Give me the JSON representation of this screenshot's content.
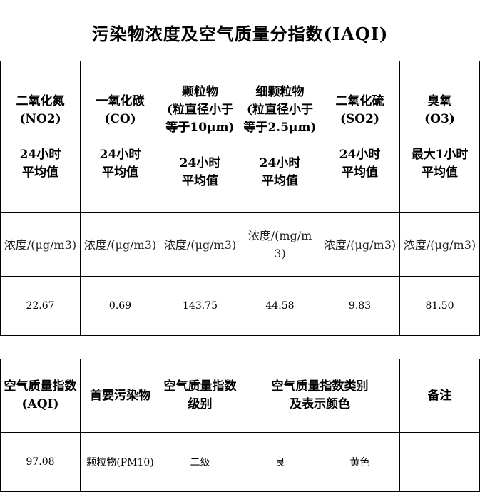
{
  "title": "污染物浓度及空气质量分指数(IAQI)",
  "pollutants": [
    {
      "name": "二氧化氮\n(NO2)\n\n24小时\n平均值",
      "unit": "浓度/(μg/m3)",
      "value": "22.67"
    },
    {
      "name": "一氧化碳\n(CO)\n\n24小时\n平均值",
      "unit": "浓度/(μg/m3)",
      "value": "0.69"
    },
    {
      "name": "颗粒物\n(粒直径小于等于10μm)\n\n24小时\n平均值",
      "unit": "浓度/(μg/m3)",
      "value": "143.75"
    },
    {
      "name": "细颗粒物\n(粒直径小于等于2.5μm)\n\n24小时\n平均值",
      "unit": "浓度/(mg/m3)",
      "value": "44.58"
    },
    {
      "name": "二氧化硫\n(SO2)\n\n24小时\n平均值",
      "unit": "浓度/(μg/m3)",
      "value": "9.83"
    },
    {
      "name": "臭氧\n(O3)\n\n最大1小时\n平均值",
      "unit": "浓度/(μg/m3)",
      "value": "81.50"
    }
  ],
  "aqi": {
    "headers": [
      "空气质量指数(AQI)",
      "首要污染物",
      "空气质量指数级别",
      "空气质量指数类别\n及表示颜色",
      "备注"
    ],
    "values": {
      "aqi": "97.08",
      "primary": "颗粒物(PM10)",
      "level": "二级",
      "category": "良",
      "color": "黄色",
      "note": ""
    }
  }
}
